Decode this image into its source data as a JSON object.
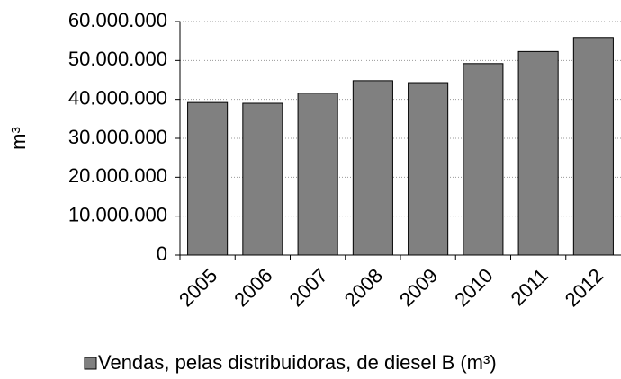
{
  "chart_data": {
    "type": "bar",
    "ylabel": "m³",
    "categories": [
      "2005",
      "2006",
      "2007",
      "2008",
      "2009",
      "2010",
      "2011",
      "2012"
    ],
    "series": [
      {
        "name": "Vendas, pelas distribuidoras, de diesel B (m³)",
        "color": "#808080",
        "values": [
          39200000,
          39000000,
          41600000,
          44800000,
          44300000,
          49200000,
          52300000,
          55900000
        ]
      }
    ],
    "ylim": [
      0,
      60000000
    ],
    "yticks": [
      0,
      {
        "value": 10000000,
        "label": "10.000.000"
      },
      {
        "value": 20000000,
        "label": "20.000.000"
      },
      {
        "value": 30000000,
        "label": "30.000.000"
      },
      {
        "value": 40000000,
        "label": "40.000.000"
      },
      {
        "value": 50000000,
        "label": "50.000.000"
      },
      {
        "value": 60000000,
        "label": "60.000.000"
      }
    ],
    "grid": true,
    "legend": "bottom"
  }
}
